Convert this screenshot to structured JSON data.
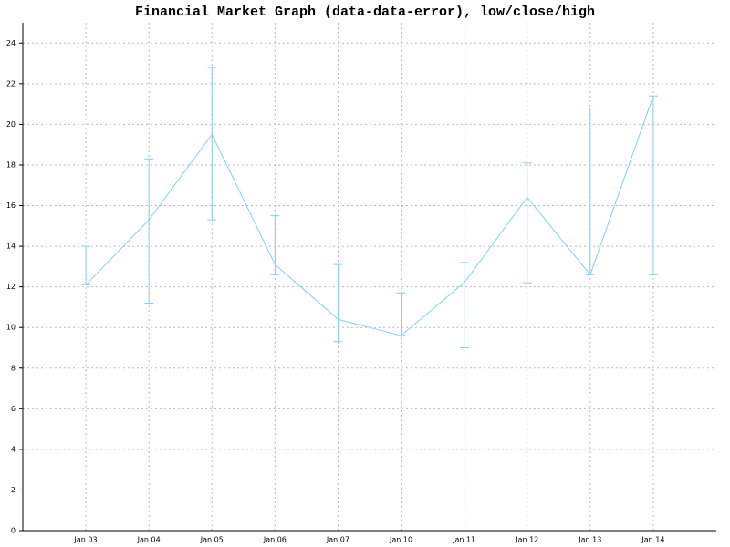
{
  "chart_data": {
    "type": "errorline",
    "title": "Financial Market Graph (data-data-error), low/close/high",
    "categories": [
      "Jan 03",
      "Jan 04",
      "Jan 05",
      "Jan 06",
      "Jan 07",
      "Jan 10",
      "Jan 11",
      "Jan 12",
      "Jan 13",
      "Jan 14"
    ],
    "series": [
      {
        "name": "close",
        "color": "#87ceeb",
        "values": [
          12.1,
          15.3,
          19.5,
          13.1,
          10.4,
          9.6,
          12.2,
          16.4,
          12.6,
          21.4
        ]
      },
      {
        "name": "low",
        "color": "#87ceeb",
        "values": [
          12.1,
          11.2,
          15.3,
          12.6,
          9.3,
          9.6,
          9.0,
          12.2,
          12.6,
          12.6
        ]
      },
      {
        "name": "high",
        "color": "#87ceeb",
        "values": [
          14.0,
          18.3,
          22.8,
          15.5,
          13.1,
          11.7,
          13.2,
          18.1,
          20.8,
          21.4
        ]
      }
    ],
    "ylim": [
      0,
      25
    ],
    "yticks": [
      0,
      2,
      4,
      6,
      8,
      10,
      12,
      14,
      16,
      18,
      20,
      22,
      24
    ],
    "grid": true
  }
}
